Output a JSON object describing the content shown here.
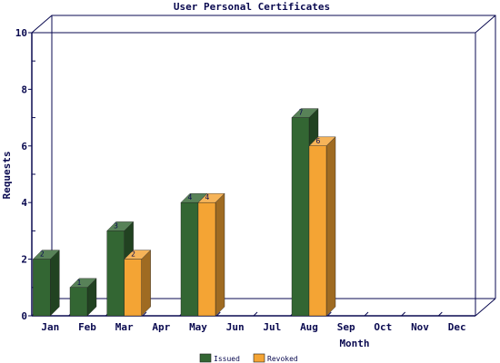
{
  "chart_data": {
    "type": "bar",
    "title": "User Personal Certificates",
    "xlabel": "Month",
    "ylabel": "Requests",
    "categories": [
      "Jan",
      "Feb",
      "Mar",
      "Apr",
      "May",
      "Jun",
      "Jul",
      "Aug",
      "Sep",
      "Oct",
      "Nov",
      "Dec"
    ],
    "series": [
      {
        "name": "Issued",
        "color": "#336633",
        "values": [
          2,
          1,
          3,
          0,
          4,
          0,
          0,
          7,
          0,
          0,
          0,
          0
        ]
      },
      {
        "name": "Revoked",
        "color": "#f4a434",
        "values": [
          0,
          0,
          2,
          0,
          4,
          0,
          0,
          6,
          0,
          0,
          0,
          0
        ]
      }
    ],
    "yticks": [
      "0",
      "2",
      "4",
      "6",
      "8",
      "10"
    ],
    "ylim": [
      0,
      10
    ],
    "grid": false,
    "legend_position": "bottom-center",
    "data_labels": true
  }
}
